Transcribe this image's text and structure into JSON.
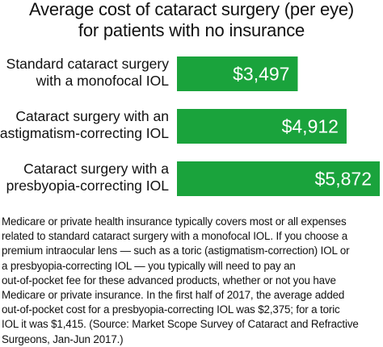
{
  "chart_data": {
    "type": "bar",
    "orientation": "horizontal",
    "title_lines": [
      "Average cost of cataract surgery (per eye)",
      "for patients with no insurance"
    ],
    "categories": [
      [
        "Standard cataract surgery",
        "with a monofocal IOL"
      ],
      [
        "Cataract surgery with an",
        "astigmatism-correcting IOL"
      ],
      [
        "Cataract surgery with a",
        "presbyopia-correcting IOL"
      ]
    ],
    "values": [
      3497,
      4912,
      5872
    ],
    "value_labels": [
      "$3,497",
      "$4,912",
      "$5,872"
    ],
    "bar_color": "#1aa33c",
    "grid": false
  },
  "note_lines": [
    "Medicare or private health insurance typically covers most or all expenses",
    "related to standard cataract surgery with a monofocal IOL. If you choose a",
    "premium intraocular lens — such as a toric (astigmatism-correction) IOL or",
    "a presbyopia-correcting IOL — you typically will need to pay an",
    "out-of-pocket fee for these advanced products, whether or not you have",
    "Medicare or private insurance. In the first half of 2017, the average added",
    "out-of-pocket cost for a presbyopia-correcting IOL was $2,375; for a toric",
    "IOL it was $1,415. (Source: Market Scope Survey of Cataract and Refractive",
    "Surgeons, Jan-Jun 2017.)"
  ]
}
